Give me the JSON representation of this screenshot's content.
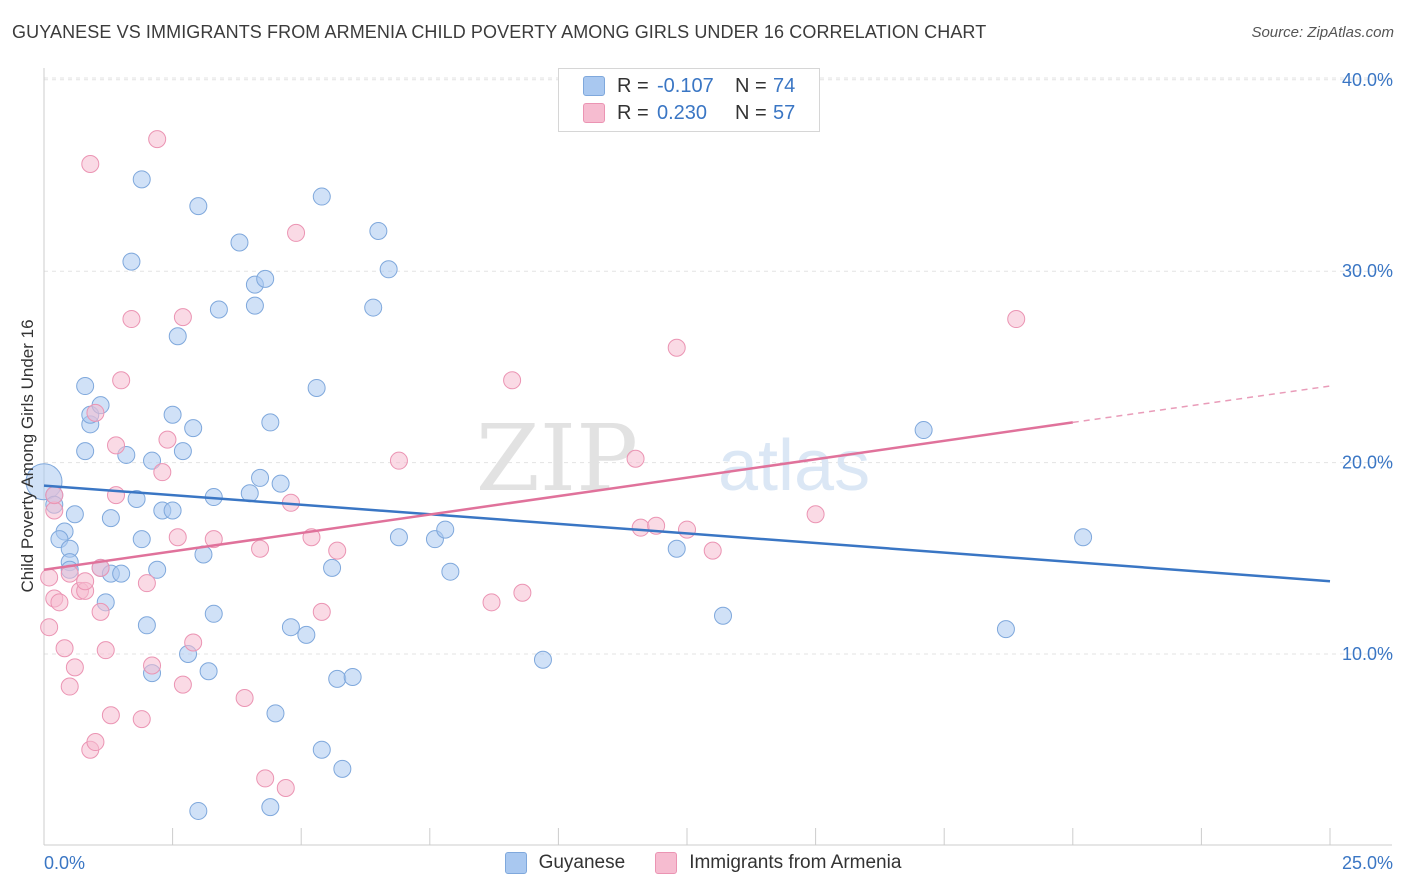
{
  "title": "GUYANESE VS IMMIGRANTS FROM ARMENIA CHILD POVERTY AMONG GIRLS UNDER 16 CORRELATION CHART",
  "source": "Source: ZipAtlas.com",
  "watermark": {
    "zip": "ZIP",
    "atlas": "atlas"
  },
  "legend": {
    "rows": [
      {
        "r_label": "R =",
        "r_value": "-0.107",
        "n_label": "N =",
        "n_value": "74",
        "color": "#a9c8f0"
      },
      {
        "r_label": "R =",
        "r_value": "0.230",
        "n_label": "N =",
        "n_value": "57",
        "color": "#f6bcd0"
      }
    ]
  },
  "bottom_legend": [
    {
      "label": "Guyanese",
      "color": "#a9c8f0"
    },
    {
      "label": "Immigrants from Armenia",
      "color": "#f6bcd0"
    }
  ],
  "chart_data": {
    "type": "scatter",
    "title": "GUYANESE VS IMMIGRANTS FROM ARMENIA CHILD POVERTY AMONG GIRLS UNDER 16 CORRELATION CHART",
    "xlabel": "",
    "ylabel": "Child Poverty Among Girls Under 16",
    "xlim": [
      0,
      25
    ],
    "ylim": [
      0,
      42
    ],
    "x_tick_labels": [
      "0.0%",
      "25.0%"
    ],
    "y_ticks": [
      10,
      20,
      30,
      40
    ],
    "y_tick_labels": [
      "10.0%",
      "20.0%",
      "30.0%",
      "40.0%"
    ],
    "grid": true,
    "legend_position": "top-center",
    "series": [
      {
        "name": "Guyanese",
        "color": "#3a76c4",
        "fill": "#a9c8f0",
        "trend": {
          "x": [
            0,
            25
          ],
          "y": [
            18.8,
            13.8
          ]
        },
        "points": [
          [
            0.0,
            19.0
          ],
          [
            0.2,
            18.3
          ],
          [
            0.2,
            17.8
          ],
          [
            0.4,
            16.4
          ],
          [
            0.3,
            16.0
          ],
          [
            0.5,
            15.5
          ],
          [
            0.6,
            17.3
          ],
          [
            0.5,
            14.8
          ],
          [
            0.5,
            14.4
          ],
          [
            0.8,
            20.6
          ],
          [
            0.9,
            22.0
          ],
          [
            0.9,
            22.5
          ],
          [
            0.8,
            24.0
          ],
          [
            1.1,
            23.0
          ],
          [
            1.1,
            14.5
          ],
          [
            1.2,
            12.7
          ],
          [
            1.3,
            17.1
          ],
          [
            1.3,
            14.2
          ],
          [
            1.5,
            14.2
          ],
          [
            1.6,
            20.4
          ],
          [
            1.7,
            30.5
          ],
          [
            1.8,
            18.1
          ],
          [
            1.9,
            16.0
          ],
          [
            1.9,
            34.8
          ],
          [
            2.0,
            11.5
          ],
          [
            2.1,
            9.0
          ],
          [
            2.1,
            20.1
          ],
          [
            2.2,
            14.4
          ],
          [
            2.3,
            17.5
          ],
          [
            2.5,
            17.5
          ],
          [
            2.5,
            22.5
          ],
          [
            2.6,
            26.6
          ],
          [
            2.7,
            20.6
          ],
          [
            2.8,
            10.0
          ],
          [
            2.9,
            21.8
          ],
          [
            3.0,
            33.4
          ],
          [
            3.0,
            1.8
          ],
          [
            3.1,
            15.2
          ],
          [
            3.2,
            9.1
          ],
          [
            3.3,
            18.2
          ],
          [
            3.3,
            12.1
          ],
          [
            3.4,
            28.0
          ],
          [
            3.8,
            31.5
          ],
          [
            4.0,
            18.4
          ],
          [
            4.1,
            28.2
          ],
          [
            4.1,
            29.3
          ],
          [
            4.2,
            19.2
          ],
          [
            4.3,
            29.6
          ],
          [
            4.4,
            2.0
          ],
          [
            4.4,
            22.1
          ],
          [
            4.5,
            6.9
          ],
          [
            4.6,
            18.9
          ],
          [
            4.8,
            11.4
          ],
          [
            5.1,
            11.0
          ],
          [
            5.3,
            23.9
          ],
          [
            5.4,
            33.9
          ],
          [
            5.4,
            5.0
          ],
          [
            5.6,
            14.5
          ],
          [
            5.7,
            8.7
          ],
          [
            5.8,
            4.0
          ],
          [
            6.0,
            8.8
          ],
          [
            6.4,
            28.1
          ],
          [
            6.5,
            32.1
          ],
          [
            6.7,
            30.1
          ],
          [
            6.9,
            16.1
          ],
          [
            7.6,
            16.0
          ],
          [
            7.8,
            16.5
          ],
          [
            7.9,
            14.3
          ],
          [
            9.7,
            9.7
          ],
          [
            12.3,
            15.5
          ],
          [
            13.2,
            12.0
          ],
          [
            17.1,
            21.7
          ],
          [
            18.7,
            11.3
          ],
          [
            20.2,
            16.1
          ]
        ]
      },
      {
        "name": "Immigrants from Armenia",
        "color": "#e0729b",
        "fill": "#f6bcd0",
        "trend": {
          "x": [
            0,
            20
          ],
          "y": [
            14.4,
            22.1
          ]
        },
        "trend_dashed_extension": {
          "x": [
            20,
            25
          ],
          "y": [
            22.1,
            24.0
          ]
        },
        "points": [
          [
            0.1,
            11.4
          ],
          [
            0.1,
            14.0
          ],
          [
            0.2,
            12.9
          ],
          [
            0.2,
            17.5
          ],
          [
            0.2,
            18.3
          ],
          [
            0.3,
            12.7
          ],
          [
            0.4,
            10.3
          ],
          [
            0.5,
            14.2
          ],
          [
            0.5,
            8.3
          ],
          [
            0.6,
            9.3
          ],
          [
            0.7,
            13.3
          ],
          [
            0.8,
            13.3
          ],
          [
            0.8,
            13.8
          ],
          [
            0.9,
            5.0
          ],
          [
            0.9,
            35.6
          ],
          [
            1.0,
            5.4
          ],
          [
            1.0,
            22.6
          ],
          [
            1.1,
            12.2
          ],
          [
            1.1,
            14.5
          ],
          [
            1.2,
            10.2
          ],
          [
            1.3,
            6.8
          ],
          [
            1.4,
            20.9
          ],
          [
            1.4,
            18.3
          ],
          [
            1.5,
            24.3
          ],
          [
            1.7,
            27.5
          ],
          [
            1.9,
            6.6
          ],
          [
            2.0,
            13.7
          ],
          [
            2.1,
            9.4
          ],
          [
            2.2,
            36.9
          ],
          [
            2.3,
            19.5
          ],
          [
            2.4,
            21.2
          ],
          [
            2.6,
            16.1
          ],
          [
            2.7,
            27.6
          ],
          [
            2.7,
            8.4
          ],
          [
            2.9,
            10.6
          ],
          [
            3.3,
            16.0
          ],
          [
            3.9,
            7.7
          ],
          [
            4.2,
            15.5
          ],
          [
            4.3,
            3.5
          ],
          [
            4.7,
            3.0
          ],
          [
            4.8,
            17.9
          ],
          [
            4.9,
            32.0
          ],
          [
            5.2,
            16.1
          ],
          [
            5.4,
            12.2
          ],
          [
            5.7,
            15.4
          ],
          [
            6.9,
            20.1
          ],
          [
            8.7,
            12.7
          ],
          [
            9.1,
            24.3
          ],
          [
            9.3,
            13.2
          ],
          [
            11.5,
            20.2
          ],
          [
            11.6,
            16.6
          ],
          [
            11.9,
            16.7
          ],
          [
            12.3,
            26.0
          ],
          [
            12.5,
            16.5
          ],
          [
            13.0,
            15.4
          ],
          [
            15.0,
            17.3
          ],
          [
            18.9,
            27.5
          ]
        ]
      }
    ]
  }
}
